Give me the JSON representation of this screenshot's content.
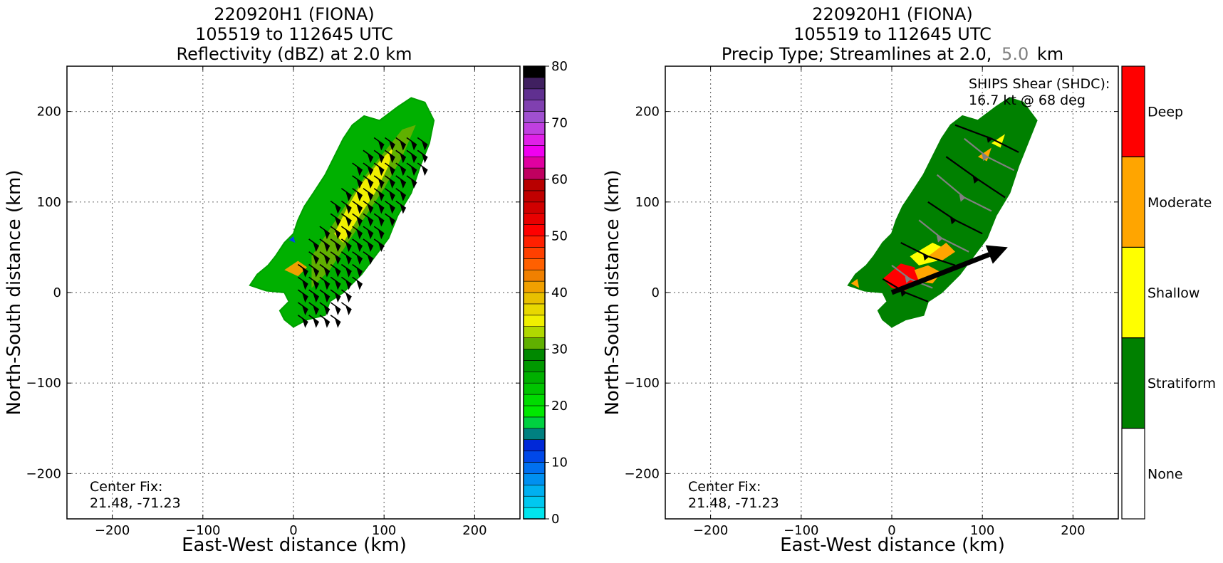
{
  "figure": {
    "left_panel": {
      "title_line1": "220920H1 (FIONA)",
      "title_line2": "105519 to 112645 UTC",
      "title_line3": "Reflectivity (dBZ) at 2.0 km",
      "center_fix_label": "Center Fix:",
      "center_fix_value": "21.48, -71.23"
    },
    "right_panel": {
      "title_line1": "220920H1 (FIONA)",
      "title_line2": "105519 to 112645 UTC",
      "title_line3_a": "Precip Type; Streamlines at 2.0,",
      "title_line3_b": "5.0",
      "title_line3_c": "km",
      "title_line3_b_color": "#808080",
      "shear_label": "SHIPS Shear (SHDC):",
      "shear_value": "16.7 kt @ 68 deg",
      "center_fix_label": "Center Fix:",
      "center_fix_value": "21.48, -71.23"
    }
  },
  "chart_data": [
    {
      "type": "heatmap",
      "title": "220920H1 (FIONA) 105519 to 112645 UTC Reflectivity (dBZ) at 2.0 km",
      "xlabel": "East-West distance (km)",
      "ylabel": "North-South distance (km)",
      "xlim": [
        -250,
        250
      ],
      "ylim": [
        -250,
        250
      ],
      "xticks": [
        -200,
        -100,
        0,
        100,
        200
      ],
      "yticks": [
        -200,
        -100,
        0,
        100,
        200
      ],
      "grid": true,
      "colorbar": {
        "label": "dBZ",
        "range": [
          0,
          80
        ],
        "ticks": [
          0,
          10,
          20,
          30,
          40,
          50,
          60,
          70,
          80
        ],
        "colors": [
          "#00e5ee",
          "#00c8f0",
          "#00b0f0",
          "#0090f0",
          "#0070f0",
          "#0048e8",
          "#0028d8",
          "#008080",
          "#00d040",
          "#00e800",
          "#00dc00",
          "#00c400",
          "#00b000",
          "#009800",
          "#008800",
          "#60b000",
          "#b0d800",
          "#f0f000",
          "#e8d800",
          "#e8c000",
          "#f0a000",
          "#f08000",
          "#ff6000",
          "#ff4000",
          "#ff2000",
          "#ff0000",
          "#e80000",
          "#d00000",
          "#c00000",
          "#b80000",
          "#c00060",
          "#e000a0",
          "#f000f0",
          "#e020e8",
          "#c040e0",
          "#a050d0",
          "#8040b0",
          "#603090",
          "#402060",
          "#000000"
        ]
      },
      "echo_region_polygon_km": [
        [
          -48,
          8
        ],
        [
          -40,
          20
        ],
        [
          -28,
          30
        ],
        [
          -20,
          40
        ],
        [
          -10,
          55
        ],
        [
          0,
          65
        ],
        [
          5,
          80
        ],
        [
          12,
          95
        ],
        [
          22,
          110
        ],
        [
          35,
          130
        ],
        [
          45,
          150
        ],
        [
          55,
          170
        ],
        [
          65,
          185
        ],
        [
          78,
          195
        ],
        [
          95,
          190
        ],
        [
          115,
          205
        ],
        [
          130,
          215
        ],
        [
          145,
          210
        ],
        [
          155,
          190
        ],
        [
          150,
          165
        ],
        [
          140,
          140
        ],
        [
          130,
          110
        ],
        [
          115,
          85
        ],
        [
          105,
          60
        ],
        [
          90,
          40
        ],
        [
          75,
          20
        ],
        [
          55,
          0
        ],
        [
          40,
          -10
        ],
        [
          35,
          -25
        ],
        [
          15,
          -30
        ],
        [
          0,
          -38
        ],
        [
          -10,
          -30
        ],
        [
          -15,
          -20
        ],
        [
          -5,
          -10
        ],
        [
          -10,
          0
        ],
        [
          -30,
          2
        ]
      ],
      "wind_barbs_region_km": {
        "x": [
          5,
          145
        ],
        "y": [
          -25,
          175
        ]
      },
      "annotation": "Center Fix: 21.48, -71.23"
    },
    {
      "type": "heatmap",
      "title": "220920H1 (FIONA) 105519 to 112645 UTC Precip Type; Streamlines at 2.0, 5.0 km",
      "xlabel": "East-West distance (km)",
      "ylabel": "North-South distance (km)",
      "xlim": [
        -250,
        250
      ],
      "ylim": [
        -250,
        250
      ],
      "xticks": [
        -200,
        -100,
        0,
        100,
        200
      ],
      "yticks": [
        -200,
        -100,
        0,
        100,
        200
      ],
      "grid": true,
      "categories": [
        "None",
        "Stratiform",
        "Shallow",
        "Moderate",
        "Deep"
      ],
      "category_colors": [
        "#ffffff",
        "#008000",
        "#ffff00",
        "#ffa500",
        "#ff0000"
      ],
      "echo_region_polygon_km": [
        [
          -48,
          8
        ],
        [
          -40,
          20
        ],
        [
          -28,
          30
        ],
        [
          -20,
          40
        ],
        [
          -10,
          55
        ],
        [
          0,
          65
        ],
        [
          5,
          80
        ],
        [
          12,
          95
        ],
        [
          22,
          110
        ],
        [
          35,
          130
        ],
        [
          45,
          150
        ],
        [
          55,
          170
        ],
        [
          65,
          185
        ],
        [
          78,
          195
        ],
        [
          95,
          190
        ],
        [
          115,
          205
        ],
        [
          130,
          215
        ],
        [
          145,
          210
        ],
        [
          160,
          190
        ],
        [
          150,
          165
        ],
        [
          140,
          140
        ],
        [
          130,
          110
        ],
        [
          115,
          85
        ],
        [
          105,
          60
        ],
        [
          90,
          40
        ],
        [
          75,
          20
        ],
        [
          55,
          0
        ],
        [
          40,
          -10
        ],
        [
          35,
          -25
        ],
        [
          15,
          -30
        ],
        [
          0,
          -38
        ],
        [
          -10,
          -30
        ],
        [
          -15,
          -20
        ],
        [
          -5,
          -10
        ],
        [
          -10,
          0
        ],
        [
          -30,
          2
        ]
      ],
      "shear_vector": {
        "speed_kt": 16.7,
        "direction_deg": 68,
        "arrow_from_km": [
          0,
          0
        ],
        "arrow_to_km": [
          128,
          50
        ]
      },
      "streamline_levels_km": [
        2.0,
        5.0
      ],
      "streamline_colors": {
        "2.0": "#000000",
        "5.0": "#808080"
      },
      "annotation": "Center Fix: 21.48, -71.23"
    }
  ]
}
